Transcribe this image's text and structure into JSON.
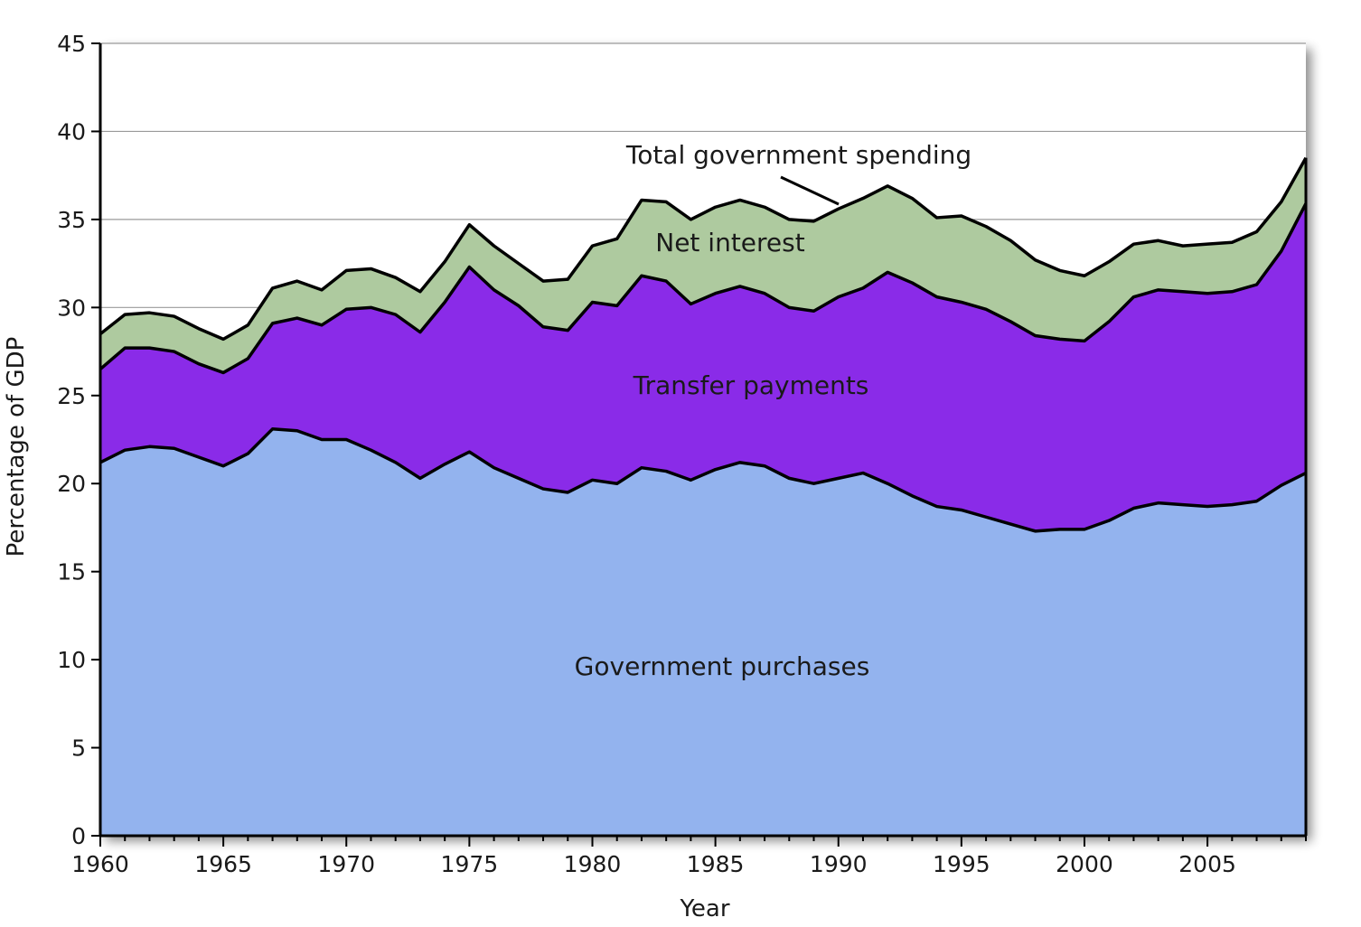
{
  "chart_data": {
    "type": "area",
    "stacked": true,
    "title": "",
    "xlabel": "Year",
    "ylabel": "Percentage of GDP",
    "xlim": [
      1960,
      2009
    ],
    "ylim": [
      0,
      45
    ],
    "x_ticks": [
      1960,
      1965,
      1970,
      1975,
      1980,
      1985,
      1990,
      1995,
      2000,
      2005
    ],
    "y_ticks": [
      0,
      5,
      10,
      15,
      20,
      25,
      30,
      35,
      40,
      45
    ],
    "grid": "horizontal",
    "x": [
      1960,
      1961,
      1962,
      1963,
      1964,
      1965,
      1966,
      1967,
      1968,
      1969,
      1970,
      1971,
      1972,
      1973,
      1974,
      1975,
      1976,
      1977,
      1978,
      1979,
      1980,
      1981,
      1982,
      1983,
      1984,
      1985,
      1986,
      1987,
      1988,
      1989,
      1990,
      1991,
      1992,
      1993,
      1994,
      1995,
      1996,
      1997,
      1998,
      1999,
      2000,
      2001,
      2002,
      2003,
      2004,
      2005,
      2006,
      2007,
      2008,
      2009
    ],
    "series": [
      {
        "name": "Government purchases",
        "color": "#93b3ee",
        "values": [
          21.2,
          21.9,
          22.1,
          22.0,
          21.5,
          21.0,
          21.7,
          23.1,
          23.0,
          22.5,
          22.5,
          21.9,
          21.2,
          20.3,
          21.1,
          21.8,
          20.9,
          20.3,
          19.7,
          19.5,
          20.2,
          20.0,
          20.9,
          20.7,
          20.2,
          20.8,
          21.2,
          21.0,
          20.3,
          20.0,
          20.3,
          20.6,
          20.0,
          19.3,
          18.7,
          18.5,
          18.1,
          17.7,
          17.3,
          17.4,
          17.4,
          17.9,
          18.6,
          18.9,
          18.8,
          18.7,
          18.8,
          19.0,
          19.9,
          20.6
        ]
      },
      {
        "name": "Transfer payments",
        "color": "#8a2be8",
        "values": [
          5.3,
          5.8,
          5.6,
          5.5,
          5.3,
          5.3,
          5.4,
          6.0,
          6.4,
          6.5,
          7.4,
          8.1,
          8.4,
          8.3,
          9.2,
          10.5,
          10.1,
          9.8,
          9.2,
          9.2,
          10.1,
          10.1,
          10.9,
          10.8,
          10.0,
          10.0,
          10.0,
          9.8,
          9.7,
          9.8,
          10.3,
          10.5,
          12.0,
          12.1,
          11.9,
          11.8,
          11.8,
          11.5,
          11.1,
          10.8,
          10.7,
          11.3,
          12.0,
          12.1,
          12.1,
          12.1,
          12.1,
          12.3,
          13.3,
          15.3
        ]
      },
      {
        "name": "Net interest",
        "color": "#aeca9f",
        "values": [
          2.0,
          1.9,
          2.0,
          2.0,
          2.0,
          1.9,
          1.9,
          2.0,
          2.1,
          2.0,
          2.2,
          2.2,
          2.1,
          2.3,
          2.3,
          2.4,
          2.5,
          2.4,
          2.6,
          2.9,
          3.2,
          3.8,
          4.3,
          4.5,
          4.8,
          4.9,
          4.9,
          4.9,
          5.0,
          5.1,
          5.0,
          5.1,
          4.9,
          4.8,
          4.5,
          4.9,
          4.7,
          4.6,
          4.3,
          3.9,
          3.7,
          3.4,
          3.0,
          2.8,
          2.6,
          2.8,
          2.8,
          3.0,
          2.8,
          2.6
        ]
      }
    ],
    "labels": {
      "government_purchases": "Government purchases",
      "transfer_payments": "Transfer payments",
      "net_interest": "Net interest",
      "total": "Total government spending"
    }
  }
}
